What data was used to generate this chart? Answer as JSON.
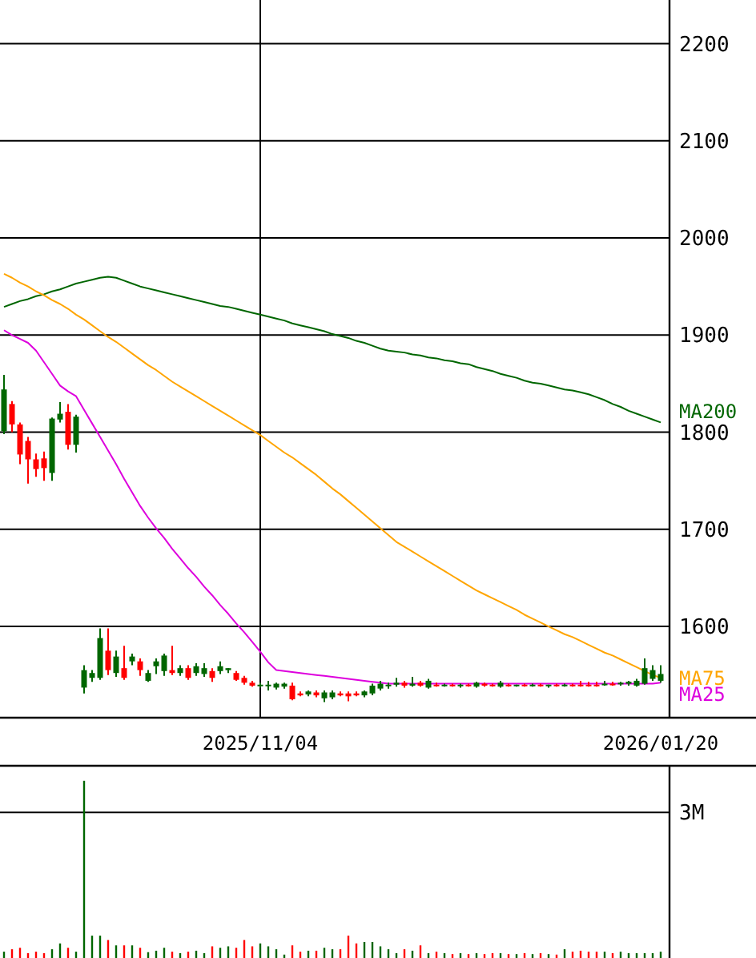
{
  "chart_data": [
    {
      "type": "candlestick",
      "categories": [
        null,
        null,
        null,
        null,
        null,
        null,
        null,
        null,
        null,
        null,
        null,
        null,
        null,
        null,
        null,
        null,
        null,
        null,
        null,
        null,
        null,
        null,
        null,
        null,
        null,
        null,
        null,
        null,
        null,
        null,
        null,
        null,
        "2025/11/04",
        null,
        null,
        null,
        null,
        null,
        null,
        null,
        null,
        null,
        null,
        null,
        null,
        null,
        null,
        null,
        null,
        null,
        null,
        null,
        null,
        null,
        null,
        null,
        null,
        null,
        null,
        null,
        null,
        null,
        null,
        null,
        null,
        null,
        null,
        null,
        null,
        null,
        null,
        null,
        null,
        null,
        null,
        null,
        null,
        null,
        null,
        null,
        null,
        null,
        "2026/01/20"
      ],
      "ohlc": [
        [
          1801,
          1859,
          1798,
          1844
        ],
        [
          1829,
          1832,
          1800,
          1808
        ],
        [
          1808,
          1810,
          1767,
          1777
        ],
        [
          1791,
          1795,
          1747,
          1772
        ],
        [
          1772,
          1778,
          1754,
          1762
        ],
        [
          1773,
          1780,
          1750,
          1763
        ],
        [
          1758,
          1815,
          1750,
          1814
        ],
        [
          1813,
          1831,
          1810,
          1819
        ],
        [
          1821,
          1829,
          1782,
          1787
        ],
        [
          1787,
          1818,
          1779,
          1816
        ],
        [
          1537,
          1560,
          1531,
          1555
        ],
        [
          1547,
          1555,
          1543,
          1552
        ],
        [
          1547,
          1598,
          1545,
          1588
        ],
        [
          1575,
          1598,
          1550,
          1555
        ],
        [
          1552,
          1575,
          1548,
          1569
        ],
        [
          1557,
          1580,
          1545,
          1547
        ],
        [
          1564,
          1572,
          1560,
          1569
        ],
        [
          1564,
          1567,
          1549,
          1555
        ],
        [
          1544,
          1555,
          1543,
          1552
        ],
        [
          1559,
          1567,
          1551,
          1564
        ],
        [
          1554,
          1572,
          1549,
          1570
        ],
        [
          1555,
          1580,
          1550,
          1552
        ],
        [
          1552,
          1560,
          1549,
          1557
        ],
        [
          1557,
          1560,
          1545,
          1547
        ],
        [
          1552,
          1562,
          1549,
          1559
        ],
        [
          1551,
          1562,
          1548,
          1557
        ],
        [
          1554,
          1557,
          1543,
          1547
        ],
        [
          1554,
          1564,
          1551,
          1559
        ],
        [
          1555,
          1557,
          1552,
          1557
        ],
        [
          1552,
          1554,
          1544,
          1545
        ],
        [
          1547,
          1549,
          1540,
          1542
        ],
        [
          1542,
          1544,
          1538,
          1539
        ],
        [
          1539,
          1542,
          1537,
          1540
        ],
        [
          1539,
          1544,
          1534,
          1540
        ],
        [
          1537,
          1542,
          1535,
          1541
        ],
        [
          1538,
          1542,
          1536,
          1541
        ],
        [
          1539,
          1542,
          1524,
          1525
        ],
        [
          1531,
          1533,
          1528,
          1529
        ],
        [
          1530,
          1534,
          1528,
          1533
        ],
        [
          1532,
          1534,
          1527,
          1529
        ],
        [
          1526,
          1534,
          1522,
          1532
        ],
        [
          1527,
          1534,
          1525,
          1532
        ],
        [
          1531,
          1533,
          1528,
          1529
        ],
        [
          1531,
          1533,
          1523,
          1528
        ],
        [
          1531,
          1533,
          1528,
          1529
        ],
        [
          1529,
          1534,
          1527,
          1533
        ],
        [
          1531,
          1541,
          1529,
          1539
        ],
        [
          1536,
          1544,
          1534,
          1541
        ],
        [
          1539,
          1542,
          1536,
          1540
        ],
        [
          1540,
          1547,
          1538,
          1542
        ],
        [
          1542,
          1544,
          1537,
          1539
        ],
        [
          1539,
          1548,
          1538,
          1541
        ],
        [
          1542,
          1544,
          1538,
          1539
        ],
        [
          1537,
          1546,
          1536,
          1544
        ],
        [
          1540,
          1542,
          1538,
          1539
        ],
        [
          1539,
          1541,
          1538,
          1540
        ],
        [
          1540,
          1541,
          1538,
          1539
        ],
        [
          1539,
          1541,
          1537,
          1540
        ],
        [
          1540,
          1541,
          1538,
          1539
        ],
        [
          1538,
          1543,
          1537,
          1542
        ],
        [
          1541,
          1542,
          1538,
          1539
        ],
        [
          1540,
          1541,
          1538,
          1539
        ],
        [
          1538,
          1544,
          1537,
          1542
        ],
        [
          1540,
          1541,
          1538,
          1539
        ],
        [
          1539,
          1540,
          1538,
          1540
        ],
        [
          1540,
          1541,
          1538,
          1539
        ],
        [
          1539,
          1541,
          1538,
          1540
        ],
        [
          1540,
          1541,
          1538,
          1539
        ],
        [
          1539,
          1540,
          1537,
          1540
        ],
        [
          1540,
          1541,
          1538,
          1539
        ],
        [
          1539,
          1541,
          1538,
          1540
        ],
        [
          1540,
          1541,
          1538,
          1539
        ],
        [
          1540,
          1544,
          1538,
          1539
        ],
        [
          1540,
          1543,
          1538,
          1539
        ],
        [
          1540,
          1543,
          1538,
          1539
        ],
        [
          1540,
          1544,
          1539,
          1541
        ],
        [
          1541,
          1543,
          1539,
          1540
        ],
        [
          1541,
          1543,
          1539,
          1542
        ],
        [
          1541,
          1544,
          1539,
          1543
        ],
        [
          1539,
          1546,
          1538,
          1544
        ],
        [
          1541,
          1567,
          1540,
          1557
        ],
        [
          1546,
          1560,
          1544,
          1555
        ],
        [
          1544,
          1560,
          1542,
          1551
        ]
      ],
      "series": [
        {
          "name": "MA200",
          "type": "line",
          "color": "#006600",
          "values": [
            1929,
            1932,
            1935,
            1937,
            1940,
            1942,
            1945,
            1947,
            1950,
            1953,
            1955,
            1957,
            1959,
            1960,
            1959,
            1956,
            1953,
            1950,
            1948,
            1946,
            1944,
            1942,
            1940,
            1938,
            1936,
            1934,
            1932,
            1930,
            1929,
            1927,
            1925,
            1923,
            1921,
            1919,
            1917,
            1915,
            1912,
            1910,
            1908,
            1906,
            1904,
            1901,
            1899,
            1897,
            1894,
            1892,
            1889,
            1886,
            1884,
            1883,
            1882,
            1880,
            1879,
            1877,
            1876,
            1874,
            1873,
            1871,
            1870,
            1867,
            1865,
            1863,
            1860,
            1858,
            1856,
            1853,
            1851,
            1850,
            1848,
            1846,
            1844,
            1843,
            1841,
            1839,
            1836,
            1833,
            1829,
            1826,
            1822,
            1819,
            1816,
            1813,
            1810
          ]
        },
        {
          "name": "MA75",
          "type": "line",
          "color": "#ffa500",
          "values": [
            1963,
            1959,
            1954,
            1950,
            1945,
            1941,
            1936,
            1932,
            1927,
            1921,
            1916,
            1910,
            1904,
            1898,
            1893,
            1887,
            1881,
            1875,
            1869,
            1864,
            1858,
            1852,
            1847,
            1842,
            1837,
            1832,
            1827,
            1822,
            1817,
            1812,
            1807,
            1802,
            1797,
            1791,
            1785,
            1779,
            1774,
            1768,
            1762,
            1756,
            1749,
            1742,
            1736,
            1729,
            1722,
            1715,
            1708,
            1701,
            1694,
            1687,
            1682,
            1677,
            1672,
            1667,
            1662,
            1657,
            1652,
            1647,
            1642,
            1637,
            1633,
            1629,
            1625,
            1621,
            1617,
            1612,
            1608,
            1604,
            1600,
            1596,
            1592,
            1589,
            1585,
            1581,
            1577,
            1573,
            1570,
            1566,
            1562,
            1558,
            1554,
            1550,
            1547
          ]
        },
        {
          "name": "MA25",
          "type": "line",
          "color": "#dd00dd",
          "values": [
            1905,
            1900,
            1896,
            1892,
            1884,
            1872,
            1860,
            1848,
            1842,
            1837,
            1823,
            1809,
            1795,
            1781,
            1767,
            1752,
            1738,
            1724,
            1712,
            1701,
            1691,
            1680,
            1670,
            1660,
            1651,
            1641,
            1632,
            1622,
            1613,
            1603,
            1594,
            1584,
            1574,
            1563,
            1555,
            1554,
            1553,
            1552,
            1551,
            1550,
            1549,
            1548,
            1547,
            1546,
            1545,
            1544,
            1543,
            1542,
            1541,
            1541,
            1541,
            1541,
            1541,
            1541,
            1541,
            1541,
            1541,
            1541,
            1541,
            1541,
            1541,
            1541,
            1541,
            1541,
            1541,
            1541,
            1541,
            1541,
            1541,
            1541,
            1541,
            1541,
            1541,
            1541,
            1541,
            1541,
            1541,
            1541,
            1541,
            1541,
            1541,
            1541,
            1542
          ]
        }
      ],
      "ylim": [
        1506,
        2245
      ],
      "yticks": [
        1600,
        1700,
        1800,
        1900,
        2000,
        2100,
        2200
      ],
      "grid": true
    },
    {
      "type": "bar",
      "categories": [
        null,
        null,
        null,
        null,
        null,
        null,
        null,
        null,
        null,
        null,
        null,
        null,
        null,
        null,
        null,
        null,
        null,
        null,
        null,
        null,
        null,
        null,
        null,
        null,
        null,
        null,
        null,
        null,
        null,
        null,
        null,
        null,
        null,
        null,
        null,
        null,
        null,
        null,
        null,
        null,
        null,
        null,
        null,
        null,
        null,
        null,
        null,
        null,
        null,
        null,
        null,
        null,
        null,
        null,
        null,
        null,
        null,
        null,
        null,
        null,
        null,
        null,
        null,
        null,
        null,
        null,
        null,
        null,
        null,
        null,
        null,
        null,
        null,
        null,
        null,
        null,
        null,
        null,
        null,
        null,
        null,
        null,
        null
      ],
      "values": [
        130000,
        180000,
        210000,
        100000,
        130000,
        100000,
        180000,
        300000,
        210000,
        130000,
        3650000,
        460000,
        460000,
        370000,
        260000,
        260000,
        260000,
        210000,
        120000,
        150000,
        210000,
        130000,
        100000,
        130000,
        150000,
        100000,
        240000,
        210000,
        240000,
        210000,
        370000,
        240000,
        300000,
        240000,
        180000,
        70000,
        260000,
        130000,
        150000,
        150000,
        210000,
        180000,
        180000,
        460000,
        300000,
        330000,
        330000,
        240000,
        180000,
        100000,
        180000,
        150000,
        260000,
        100000,
        130000,
        100000,
        80000,
        100000,
        80000,
        100000,
        80000,
        100000,
        100000,
        80000,
        80000,
        100000,
        80000,
        100000,
        80000,
        70000,
        180000,
        130000,
        150000,
        130000,
        130000,
        130000,
        100000,
        130000,
        100000,
        100000,
        100000,
        100000,
        130000
      ],
      "colors": [
        "#006600",
        "#ff0000",
        "#ff0000",
        "#ff0000",
        "#ff0000",
        "#ff0000",
        "#006600",
        "#006600",
        "#ff0000",
        "#006600",
        "#006600",
        "#006600",
        "#006600",
        "#ff0000",
        "#006600",
        "#ff0000",
        "#006600",
        "#ff0000",
        "#006600",
        "#006600",
        "#006600",
        "#ff0000",
        "#006600",
        "#ff0000",
        "#006600",
        "#006600",
        "#ff0000",
        "#006600",
        "#006600",
        "#ff0000",
        "#ff0000",
        "#ff0000",
        "#006600",
        "#006600",
        "#006600",
        "#006600",
        "#ff0000",
        "#ff0000",
        "#006600",
        "#ff0000",
        "#006600",
        "#006600",
        "#ff0000",
        "#ff0000",
        "#ff0000",
        "#006600",
        "#006600",
        "#006600",
        "#006600",
        "#006600",
        "#ff0000",
        "#006600",
        "#ff0000",
        "#006600",
        "#ff0000",
        "#006600",
        "#ff0000",
        "#006600",
        "#ff0000",
        "#006600",
        "#ff0000",
        "#ff0000",
        "#006600",
        "#ff0000",
        "#006600",
        "#ff0000",
        "#006600",
        "#ff0000",
        "#006600",
        "#ff0000",
        "#006600",
        "#ff0000",
        "#ff0000",
        "#ff0000",
        "#ff0000",
        "#006600",
        "#ff0000",
        "#006600",
        "#006600",
        "#006600",
        "#006600",
        "#006600",
        "#006600"
      ],
      "ylim": [
        0,
        3960000
      ],
      "yticks": [
        {
          "value": 3000000,
          "label": "3M"
        }
      ],
      "grid": "y",
      "tick_labels": "y"
    }
  ]
}
